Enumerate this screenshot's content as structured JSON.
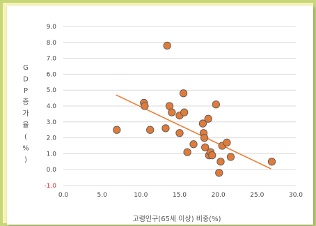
{
  "chart_data": {
    "type": "scatter",
    "xlabel": "고령인구(65세 이상) 비중(%)",
    "ylabel_chars": [
      "G",
      "D",
      "P",
      "증",
      "가",
      "율",
      "(",
      "%",
      ")"
    ],
    "xlim": [
      0,
      30
    ],
    "ylim": [
      -1,
      9
    ],
    "x_ticks": [
      "0.0",
      "5.0",
      "10.0",
      "15.0",
      "20.0",
      "25.0",
      "30.0"
    ],
    "y_ticks": [
      "-1.0",
      "0.0",
      "1.0",
      "2.0",
      "3.0",
      "4.0",
      "5.0",
      "6.0",
      "7.0",
      "8.0",
      "9.0"
    ],
    "grid": true,
    "marker_color": "#e07b39",
    "trendline_color": "#ed7d31",
    "trendline": {
      "x": [
        6.8,
        26.8
      ],
      "y": [
        4.7,
        0.05
      ]
    },
    "points": [
      {
        "x": 6.9,
        "y": 2.5
      },
      {
        "x": 10.4,
        "y": 4.2
      },
      {
        "x": 10.5,
        "y": 4.0
      },
      {
        "x": 11.2,
        "y": 2.5
      },
      {
        "x": 13.2,
        "y": 2.6
      },
      {
        "x": 13.4,
        "y": 7.8
      },
      {
        "x": 13.7,
        "y": 4.0
      },
      {
        "x": 14.0,
        "y": 3.6
      },
      {
        "x": 15.0,
        "y": 3.4
      },
      {
        "x": 15.0,
        "y": 2.3
      },
      {
        "x": 15.5,
        "y": 4.8
      },
      {
        "x": 15.6,
        "y": 3.6
      },
      {
        "x": 16.0,
        "y": 1.1
      },
      {
        "x": 16.8,
        "y": 1.6
      },
      {
        "x": 18.0,
        "y": 2.9
      },
      {
        "x": 18.1,
        "y": 2.3
      },
      {
        "x": 18.2,
        "y": 2.0
      },
      {
        "x": 18.3,
        "y": 1.4
      },
      {
        "x": 18.7,
        "y": 3.2
      },
      {
        "x": 18.8,
        "y": 0.9
      },
      {
        "x": 19.0,
        "y": 1.1
      },
      {
        "x": 19.2,
        "y": 0.9
      },
      {
        "x": 19.7,
        "y": 4.1
      },
      {
        "x": 20.1,
        "y": -0.2
      },
      {
        "x": 20.3,
        "y": 0.5
      },
      {
        "x": 20.5,
        "y": 1.5
      },
      {
        "x": 21.1,
        "y": 1.7
      },
      {
        "x": 21.6,
        "y": 0.8
      },
      {
        "x": 26.9,
        "y": 0.5
      }
    ]
  }
}
